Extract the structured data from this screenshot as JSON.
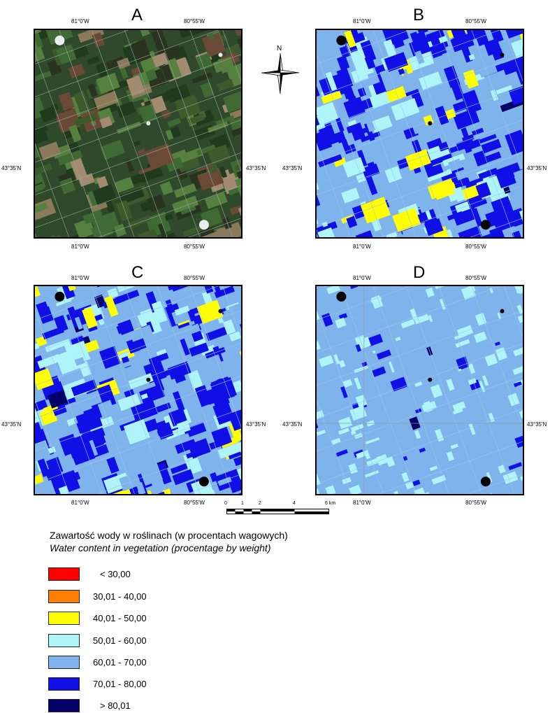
{
  "panels": [
    {
      "letter": "A",
      "top_lon_left": "81°0'W",
      "top_lon_right": "80°55'W",
      "bot_lon_left": "81°0'W",
      "bot_lon_right": "80°55'W",
      "lat_left": "43°35'N",
      "lat_right": "43°35'N",
      "kind": "rgb"
    },
    {
      "letter": "B",
      "top_lon_left": "81°0'W",
      "top_lon_right": "80°55'W",
      "bot_lon_left": "81°0'W",
      "bot_lon_right": "80°55'W",
      "lat_left": "43°35'N",
      "lat_right": "43°35'N",
      "kind": "classB"
    },
    {
      "letter": "C",
      "top_lon_left": "81°0'W",
      "top_lon_right": "80°55'W",
      "bot_lon_left": "81°0'W",
      "bot_lon_right": "80°55'W",
      "lat_left": "43°35'N",
      "lat_right": "43°35'N",
      "kind": "classC"
    },
    {
      "letter": "D",
      "top_lon_left": "81°0'W",
      "top_lon_right": "80°55'W",
      "bot_lon_left": "81°0'W",
      "bot_lon_right": "80°55'W",
      "lat_left": "43°35'N",
      "lat_right": "43°35'N",
      "kind": "classD"
    }
  ],
  "north_arrow": {
    "label": "N"
  },
  "scale_bar": {
    "ticks": [
      "0",
      "1",
      "2",
      "4",
      "6 km"
    ]
  },
  "legend": {
    "title_pl": "Zawartość wody w roślinach (w procentach wagowych)",
    "title_en": "Water content in vegetation (procentage by weight)",
    "classes": [
      {
        "label": "< 30,00",
        "color": "#ff0000"
      },
      {
        "label": "30,01 - 40,00",
        "color": "#ff8000"
      },
      {
        "label": "40,01 - 50,00",
        "color": "#ffff00"
      },
      {
        "label": "50,01 - 60,00",
        "color": "#aef4f8"
      },
      {
        "label": "60,01 - 70,00",
        "color": "#7fb3ec"
      },
      {
        "label": "70,01 - 80,00",
        "color": "#1010e6"
      },
      {
        "label": "> 80,01",
        "color": "#000066"
      }
    ]
  }
}
